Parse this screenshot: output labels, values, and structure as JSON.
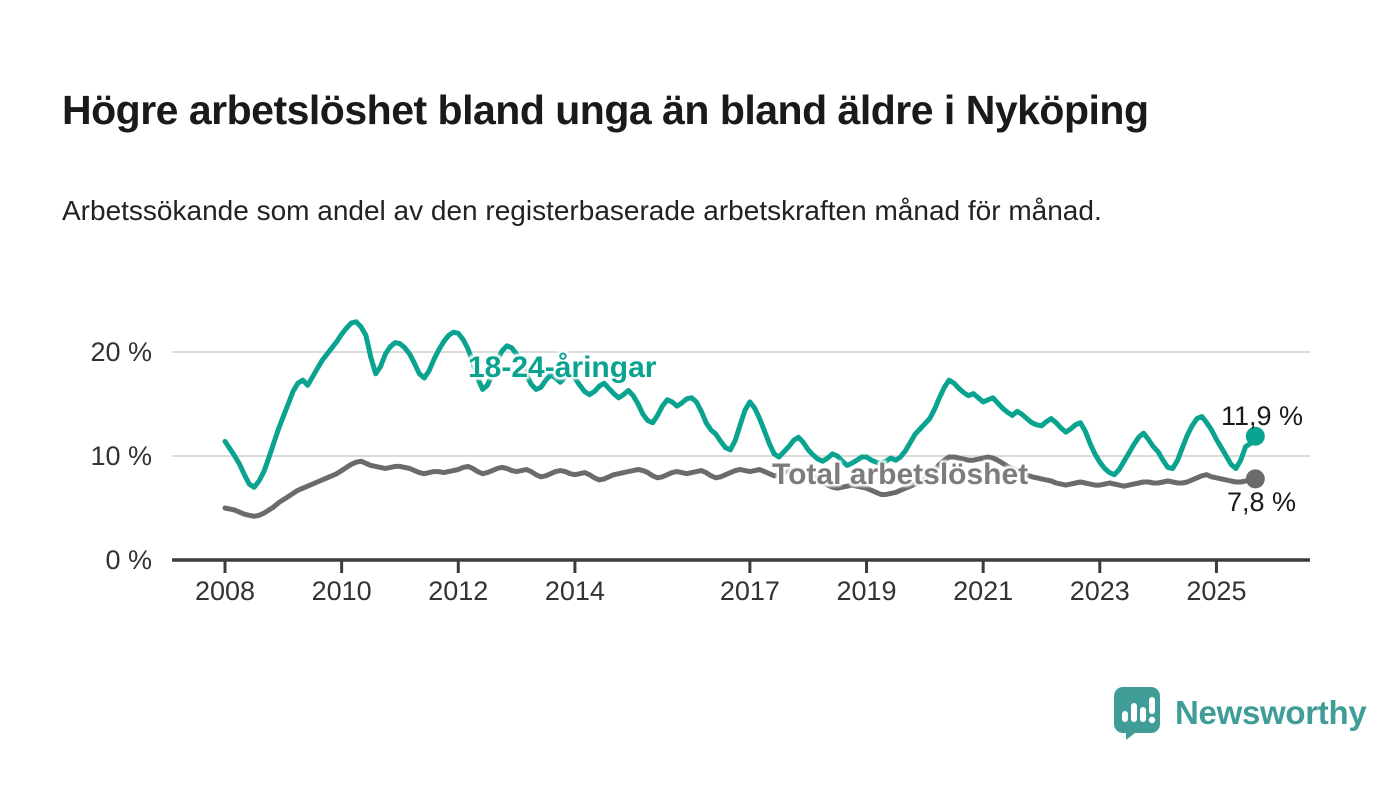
{
  "title": "Högre arbetslöshet bland unga än bland äldre i Nyköping",
  "subtitle": "Arbetssökande som andel av den registerbaserade arbetskraften månad för månad.",
  "branding": {
    "name": "Newsworthy",
    "color": "#3f9c97",
    "icon": "bar-chart-speech-bubble"
  },
  "colors": {
    "youth_line": "#0aa390",
    "total_line": "#6b6b6b",
    "total_label": "#7c7c7c",
    "gridline": "#dcdcdc",
    "axis": "#3c3c3c",
    "tick_text": "#333333"
  },
  "chart_data": {
    "type": "line",
    "title": "Högre arbetslöshet bland unga än bland äldre i Nyköping",
    "subtitle": "Arbetssökande som andel av den registerbaserade arbetskraften månad för månad.",
    "x_unit": "month",
    "x_start": "2008-01",
    "x_end": "2025-09",
    "x_tick_years": [
      2008,
      2010,
      2012,
      2014,
      2017,
      2019,
      2021,
      2023,
      2025
    ],
    "y_ticks": [
      {
        "value": 0,
        "label": "0 %"
      },
      {
        "value": 10,
        "label": "10 %"
      },
      {
        "value": 20,
        "label": "20 %"
      }
    ],
    "ylim": [
      0,
      25
    ],
    "grid": "horizontal",
    "legend_position": "inline-labels",
    "series": [
      {
        "name": "18-24-åringar",
        "label": "18-24-åringar",
        "end_label": "11,9 %",
        "end_value": 11.9,
        "color": "#0aa390",
        "values": [
          11.4,
          10.7,
          10.0,
          9.2,
          8.2,
          7.3,
          7.0,
          7.6,
          8.5,
          9.8,
          11.2,
          12.6,
          13.8,
          15.0,
          16.2,
          17.0,
          17.3,
          16.8,
          17.6,
          18.4,
          19.2,
          19.8,
          20.4,
          21.0,
          21.7,
          22.3,
          22.8,
          22.9,
          22.4,
          21.6,
          19.5,
          17.9,
          18.6,
          19.8,
          20.5,
          20.9,
          20.8,
          20.4,
          19.8,
          18.9,
          17.9,
          17.5,
          18.2,
          19.3,
          20.2,
          21.0,
          21.6,
          21.9,
          21.8,
          21.2,
          20.3,
          19.0,
          17.5,
          16.4,
          16.8,
          17.9,
          19.2,
          20.1,
          20.6,
          20.4,
          19.8,
          18.9,
          17.8,
          16.9,
          16.4,
          16.6,
          17.3,
          17.8,
          17.5,
          17.1,
          17.6,
          17.9,
          17.5,
          16.8,
          16.2,
          15.9,
          16.2,
          16.7,
          17.0,
          16.5,
          16.0,
          15.6,
          15.9,
          16.3,
          15.8,
          15.0,
          14.0,
          13.4,
          13.2,
          13.9,
          14.8,
          15.4,
          15.2,
          14.8,
          15.1,
          15.5,
          15.6,
          15.2,
          14.3,
          13.2,
          12.5,
          12.1,
          11.4,
          10.8,
          10.6,
          11.5,
          13.0,
          14.4,
          15.2,
          14.6,
          13.6,
          12.4,
          11.2,
          10.2,
          9.9,
          10.4,
          10.9,
          11.5,
          11.8,
          11.3,
          10.6,
          10.1,
          9.7,
          9.5,
          9.8,
          10.2,
          10.0,
          9.5,
          9.1,
          9.3,
          9.6,
          9.9,
          9.9,
          9.6,
          9.4,
          9.3,
          9.5,
          9.8,
          9.6,
          9.9,
          10.5,
          11.3,
          12.1,
          12.6,
          13.1,
          13.6,
          14.5,
          15.6,
          16.6,
          17.3,
          17.0,
          16.5,
          16.1,
          15.8,
          16.0,
          15.6,
          15.2,
          15.4,
          15.6,
          15.1,
          14.6,
          14.2,
          13.9,
          14.3,
          14.0,
          13.6,
          13.2,
          13.0,
          12.9,
          13.3,
          13.6,
          13.2,
          12.7,
          12.3,
          12.6,
          13.0,
          13.2,
          12.4,
          11.2,
          10.2,
          9.4,
          8.8,
          8.4,
          8.2,
          8.7,
          9.5,
          10.3,
          11.1,
          11.8,
          12.2,
          11.6,
          10.9,
          10.4,
          9.6,
          8.9,
          8.8,
          9.6,
          10.8,
          12.0,
          12.9,
          13.6,
          13.8,
          13.2,
          12.5,
          11.6,
          10.8,
          10.0,
          9.2,
          8.8,
          9.6,
          10.9,
          11.2,
          11.9
        ]
      },
      {
        "name": "Total arbetslöshet",
        "label": "Total arbetslöshet",
        "end_label": "7,8 %",
        "end_value": 7.8,
        "color": "#6b6b6b",
        "values": [
          5.0,
          4.9,
          4.8,
          4.6,
          4.4,
          4.3,
          4.2,
          4.3,
          4.5,
          4.8,
          5.1,
          5.5,
          5.8,
          6.1,
          6.4,
          6.7,
          6.9,
          7.1,
          7.3,
          7.5,
          7.7,
          7.9,
          8.1,
          8.3,
          8.6,
          8.9,
          9.2,
          9.4,
          9.5,
          9.3,
          9.1,
          9.0,
          8.9,
          8.8,
          8.9,
          9.0,
          9.0,
          8.9,
          8.8,
          8.6,
          8.4,
          8.3,
          8.4,
          8.5,
          8.5,
          8.4,
          8.5,
          8.6,
          8.7,
          8.9,
          9.0,
          8.8,
          8.5,
          8.3,
          8.4,
          8.6,
          8.8,
          8.9,
          8.8,
          8.6,
          8.5,
          8.6,
          8.7,
          8.5,
          8.2,
          8.0,
          8.1,
          8.3,
          8.5,
          8.6,
          8.5,
          8.3,
          8.2,
          8.3,
          8.4,
          8.2,
          7.9,
          7.7,
          7.8,
          8.0,
          8.2,
          8.3,
          8.4,
          8.5,
          8.6,
          8.7,
          8.6,
          8.4,
          8.1,
          7.9,
          8.0,
          8.2,
          8.4,
          8.5,
          8.4,
          8.3,
          8.4,
          8.5,
          8.6,
          8.4,
          8.1,
          7.9,
          8.0,
          8.2,
          8.4,
          8.6,
          8.7,
          8.6,
          8.5,
          8.6,
          8.7,
          8.5,
          8.3,
          8.1,
          8.2,
          8.4,
          8.6,
          8.7,
          8.6,
          8.4,
          8.2,
          8.0,
          7.8,
          7.5,
          7.2,
          7.0,
          6.9,
          7.0,
          7.1,
          7.2,
          7.1,
          7.0,
          6.9,
          6.7,
          6.5,
          6.3,
          6.3,
          6.4,
          6.5,
          6.7,
          6.9,
          7.1,
          7.3,
          7.5,
          7.8,
          8.1,
          8.6,
          9.2,
          9.6,
          9.9,
          9.9,
          9.8,
          9.7,
          9.6,
          9.6,
          9.7,
          9.8,
          9.9,
          9.8,
          9.6,
          9.3,
          9.0,
          8.8,
          8.6,
          8.4,
          8.2,
          8.0,
          7.9,
          7.8,
          7.7,
          7.6,
          7.4,
          7.3,
          7.2,
          7.3,
          7.4,
          7.5,
          7.4,
          7.3,
          7.2,
          7.2,
          7.3,
          7.4,
          7.3,
          7.2,
          7.1,
          7.2,
          7.3,
          7.4,
          7.5,
          7.5,
          7.4,
          7.4,
          7.5,
          7.6,
          7.5,
          7.4,
          7.4,
          7.5,
          7.7,
          7.9,
          8.1,
          8.2,
          8.0,
          7.9,
          7.8,
          7.7,
          7.6,
          7.5,
          7.5,
          7.6,
          7.7,
          7.8
        ]
      }
    ]
  }
}
